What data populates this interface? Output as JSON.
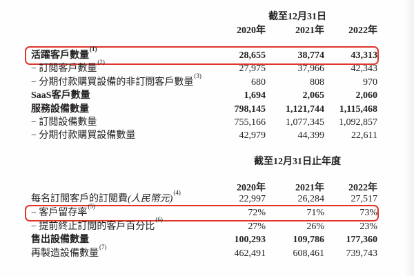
{
  "page": {
    "background_color": "#fefefe",
    "text_color": "#232020",
    "highlight_box_color": "#e1342b"
  },
  "tables": [
    {
      "name": "customer-and-device-counts",
      "period_header": "截至12月31日",
      "years": [
        "2020年",
        "2021年",
        "2022年"
      ],
      "rows": [
        {
          "label": "活躍客戶數量",
          "sup": "(1)",
          "values": [
            "28,655",
            "38,774",
            "43,313"
          ],
          "bold": true,
          "boxed": true
        },
        {
          "label": "− 訂閲客戶數量",
          "sup": "(2)",
          "values": [
            "27,975",
            "37,966",
            "42,343"
          ],
          "bold": false,
          "boxed": false
        },
        {
          "label": "− 分期付款購買設備的非訂閲客戶數量",
          "sup": "(3)",
          "values": [
            "680",
            "808",
            "970"
          ],
          "bold": false,
          "boxed": false
        },
        {
          "label": "SaaS客戶數量",
          "sup": "",
          "values": [
            "1,694",
            "2,065",
            "2,060"
          ],
          "bold": true,
          "boxed": false
        },
        {
          "label": "服務設備數量",
          "sup": "",
          "values": [
            "798,145",
            "1,121,744",
            "1,115,468"
          ],
          "bold": true,
          "boxed": false
        },
        {
          "label": "− 訂閲設備數量",
          "sup": "",
          "values": [
            "755,166",
            "1,077,345",
            "1,092,857"
          ],
          "bold": false,
          "boxed": false
        },
        {
          "label": "− 分期付款購買設備數量",
          "sup": "",
          "values": [
            "42,979",
            "44,399",
            "22,611"
          ],
          "bold": false,
          "boxed": false
        }
      ]
    },
    {
      "name": "subscription-metrics",
      "period_header": "截至12月31日止年度",
      "years": [
        "2020年",
        "2021年",
        "2022年"
      ],
      "rows": [
        {
          "label": "每名訂閲客戶的訂閲費",
          "label_italic": "(人民幣元)",
          "sup": "(4)",
          "values": [
            "22,997",
            "26,284",
            "27,517"
          ],
          "bold": false,
          "boxed": false
        },
        {
          "label": "− 客戶留存率",
          "sup": "(5)",
          "values": [
            "72%",
            "71%",
            "73%"
          ],
          "bold": false,
          "boxed": true
        },
        {
          "label": "− 提前終止訂閲的客戶百分比",
          "sup": "(6)",
          "values": [
            "27%",
            "26%",
            "23%"
          ],
          "bold": false,
          "boxed": false
        },
        {
          "label": "售出設備數量",
          "sup": "",
          "values": [
            "100,293",
            "109,786",
            "177,360"
          ],
          "bold": true,
          "boxed": false
        },
        {
          "label": "再製造設備數量",
          "sup": "(7)",
          "values": [
            "462,491",
            "608,461",
            "739,743"
          ],
          "bold": false,
          "boxed": false
        }
      ]
    }
  ]
}
